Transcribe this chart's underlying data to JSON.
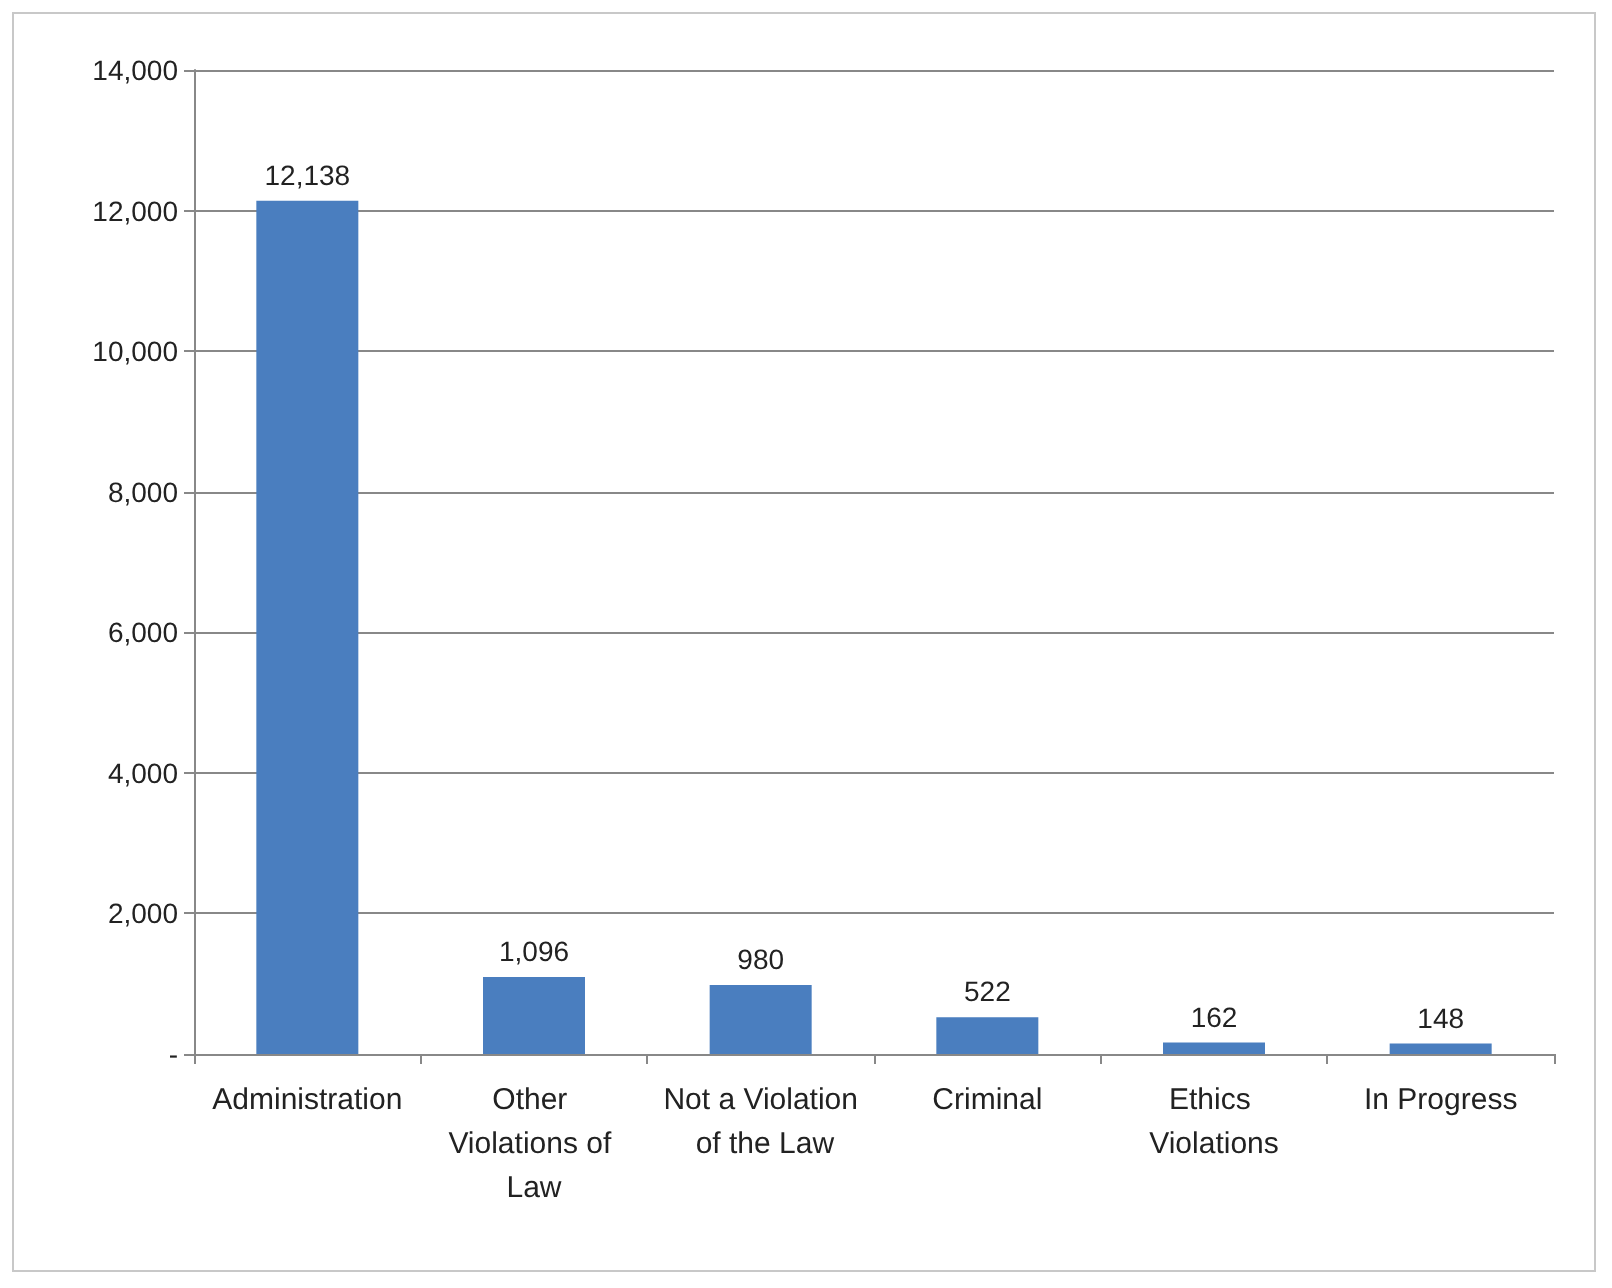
{
  "chart_data": {
    "type": "bar",
    "categories": [
      "Administration",
      "Other Violations of Law",
      "Not a Violation of the Law",
      "Criminal",
      "Ethics Violations",
      "In Progress"
    ],
    "values": [
      12138,
      1096,
      980,
      522,
      162,
      148
    ],
    "value_labels": [
      "12,138",
      "1,096",
      "980",
      "522",
      "162",
      "148"
    ],
    "color": "#4a7ebf",
    "ylim": [
      0,
      14000
    ],
    "yticks": [
      {
        "value": 0,
        "label": "-"
      },
      {
        "value": 2000,
        "label": "2,000"
      },
      {
        "value": 4000,
        "label": "4,000"
      },
      {
        "value": 6000,
        "label": "6,000"
      },
      {
        "value": 8000,
        "label": "8,000"
      },
      {
        "value": 10000,
        "label": "10,000"
      },
      {
        "value": 12000,
        "label": "12,000"
      },
      {
        "value": 14000,
        "label": "14,000"
      }
    ],
    "grid": "y"
  }
}
